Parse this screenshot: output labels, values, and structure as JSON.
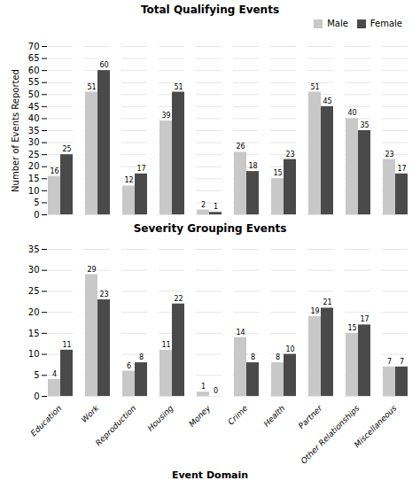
{
  "chart_data": [
    {
      "type": "bar",
      "title": "Total Qualifying Events",
      "ylabel": "Number of Events Reported",
      "categories": [
        "Education",
        "Work",
        "Reproduction",
        "Housing",
        "Money",
        "Crime",
        "Health",
        "Partner",
        "Other Relationships",
        "Miscellaneous"
      ],
      "series": [
        {
          "name": "Male",
          "color": "#c8c8c8",
          "values": [
            16,
            51,
            12,
            39,
            2,
            26,
            15,
            51,
            40,
            23
          ]
        },
        {
          "name": "Female",
          "color": "#4a4a4a",
          "values": [
            25,
            60,
            17,
            51,
            1,
            18,
            23,
            45,
            35,
            17
          ]
        }
      ],
      "ylim": [
        0,
        70
      ],
      "yticks": [
        0,
        5,
        10,
        15,
        20,
        25,
        30,
        35,
        40,
        45,
        50,
        55,
        60,
        65,
        70
      ],
      "grid": true,
      "legend": "upper right",
      "data_labels": true,
      "tick_labels": "y"
    },
    {
      "type": "bar",
      "title": "Severity Grouping Events",
      "xlabel": "Event Domain",
      "categories": [
        "Education",
        "Work",
        "Reproduction",
        "Housing",
        "Money",
        "Crime",
        "Health",
        "Partner",
        "Other Relationships",
        "Miscellaneous"
      ],
      "series": [
        {
          "name": "Male",
          "color": "#c8c8c8",
          "values": [
            4,
            29,
            6,
            11,
            1,
            14,
            8,
            19,
            15,
            7
          ]
        },
        {
          "name": "Female",
          "color": "#4a4a4a",
          "values": [
            11,
            23,
            8,
            22,
            0,
            8,
            10,
            21,
            17,
            7
          ]
        }
      ],
      "ylim": [
        0,
        35
      ],
      "yticks": [
        0,
        5,
        10,
        15,
        20,
        25,
        30,
        35
      ],
      "grid": true,
      "data_labels": true
    }
  ]
}
